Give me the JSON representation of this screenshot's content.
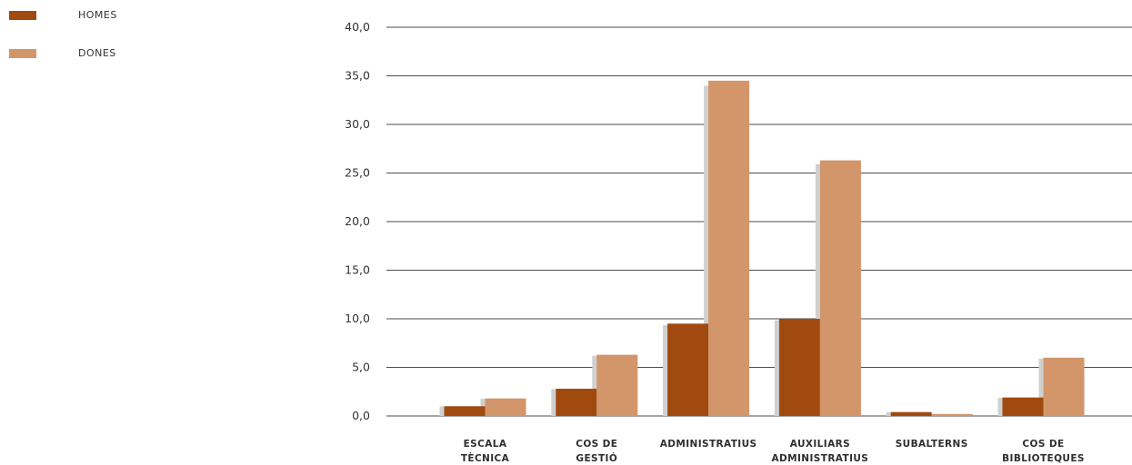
{
  "chart_data": {
    "type": "bar",
    "categories": [
      [
        "ESCALA",
        "TÈCNICA"
      ],
      [
        "COS DE",
        "GESTIÓ"
      ],
      [
        "ADMINISTRATIUS"
      ],
      [
        "AUXILIARS",
        "ADMINISTRATIUS"
      ],
      [
        "SUBALTERNS"
      ],
      [
        "COS DE",
        "BIBLIOTEQUES"
      ]
    ],
    "series": [
      {
        "name": "HOMES",
        "color": "#a14a0f",
        "values": [
          1.0,
          2.8,
          9.5,
          10.0,
          0.4,
          1.9
        ]
      },
      {
        "name": "DONES",
        "color": "#d2966a",
        "values": [
          1.8,
          6.3,
          34.5,
          26.3,
          0.2,
          6.0
        ]
      }
    ],
    "shadow_color": "#d0d0d0",
    "ylim": [
      0,
      40
    ],
    "yticks": [
      "0,0",
      "5,0",
      "10,0",
      "15,0",
      "20,0",
      "25,0",
      "30,0",
      "35,0",
      "40,0"
    ],
    "grid": true,
    "legend_position": "top-left"
  }
}
